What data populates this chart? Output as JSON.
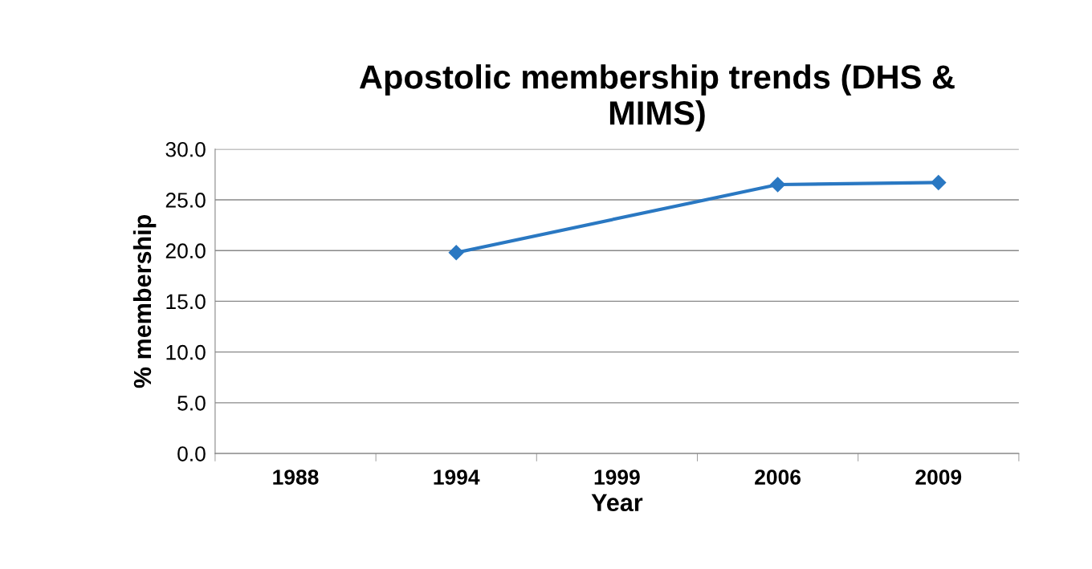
{
  "chart_data": {
    "type": "line",
    "title": "Apostolic membership trends (DHS &\nMIMS)",
    "xlabel": "Year",
    "ylabel": "% membership",
    "categories": [
      "1988",
      "1994",
      "1999",
      "2006",
      "2009"
    ],
    "series": [
      {
        "color": "#2a78c2",
        "values": [
          null,
          19.8,
          null,
          26.5,
          26.7
        ]
      }
    ],
    "ylim": [
      0,
      30
    ],
    "yticks": [
      {
        "value": 0,
        "label": "0.0"
      },
      {
        "value": 5,
        "label": "5.0"
      },
      {
        "value": 10,
        "label": "10.0"
      },
      {
        "value": 15,
        "label": "15.0"
      },
      {
        "value": 20,
        "label": "20.0"
      },
      {
        "value": 25,
        "label": "25.0"
      },
      {
        "value": 30,
        "label": "30.0"
      }
    ],
    "grid": "y",
    "marker": "diamond",
    "line_style": "solid"
  }
}
